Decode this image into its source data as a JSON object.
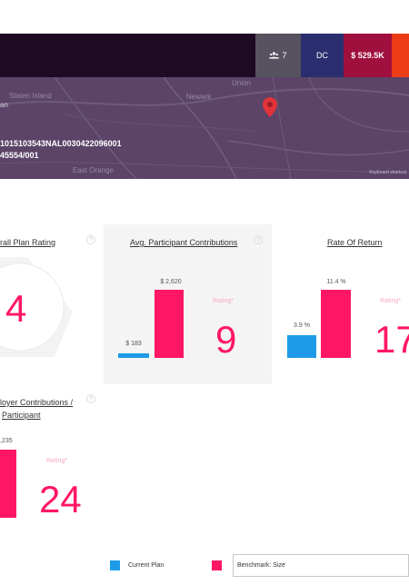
{
  "topbar": {
    "participants": "7",
    "dc": "DC",
    "amount": "$ 529.5K"
  },
  "map": {
    "labels": [
      "Staten Island",
      "Newark",
      "Union",
      "East Orange"
    ],
    "left_word": "an",
    "plan_line1": "1015103543NAL0030422096001",
    "plan_line2": "45554/001",
    "keyboard_shortcuts": "Keyboard shortcut"
  },
  "overall": {
    "title": "rall Plan Rating",
    "rating": "4"
  },
  "participant": {
    "title": "Avg. Participant Contributions",
    "current_value": "$ 183",
    "benchmark_value": "$ 2,620",
    "current": 183,
    "benchmark": 2620,
    "rating_label": "Rating*",
    "rating": "9"
  },
  "return": {
    "title": "Rate Of Return",
    "current_value": "3.9 %",
    "benchmark_value": "11.4 %",
    "current": 3.9,
    "benchmark": 11.4,
    "rating_label": "Rating*",
    "rating": "17"
  },
  "employer": {
    "title_line1": "loyer Contributions /",
    "title_line2": "Participant",
    "benchmark_value": ",235",
    "rating_label": "Rating*",
    "rating": "24"
  },
  "legend": {
    "current": "Current Plan",
    "benchmark": "Benchmark: Size",
    "dropdown_value": "Benchmark: Size"
  },
  "colors": {
    "current": "#1e9be8",
    "benchmark": "#ff1765"
  }
}
